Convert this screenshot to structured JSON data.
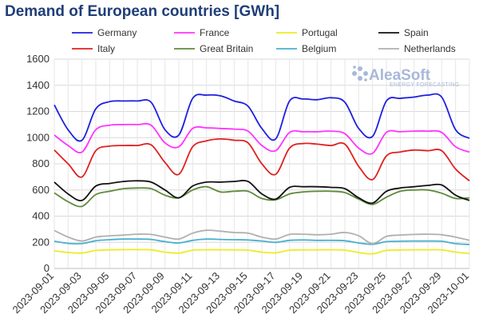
{
  "chart_data": {
    "type": "line",
    "title": "Demand of European countries [GWh]",
    "xlabel": "",
    "ylabel": "",
    "ylim": [
      0,
      1600
    ],
    "yticks": [
      0,
      200,
      400,
      600,
      800,
      1000,
      1200,
      1400,
      1600
    ],
    "xticks": [
      "2023-09-01",
      "2023-09-03",
      "2023-09-05",
      "2023-09-07",
      "2023-09-09",
      "2023-09-11",
      "2023-09-13",
      "2023-09-15",
      "2023-09-17",
      "2023-09-19",
      "2023-09-21",
      "2023-09-23",
      "2023-09-25",
      "2023-09-27",
      "2023-09-29",
      "2023-10-01"
    ],
    "x": [
      "2023-09-01",
      "2023-09-02",
      "2023-09-03",
      "2023-09-04",
      "2023-09-05",
      "2023-09-06",
      "2023-09-07",
      "2023-09-08",
      "2023-09-09",
      "2023-09-10",
      "2023-09-11",
      "2023-09-12",
      "2023-09-13",
      "2023-09-14",
      "2023-09-15",
      "2023-09-16",
      "2023-09-17",
      "2023-09-18",
      "2023-09-19",
      "2023-09-20",
      "2023-09-21",
      "2023-09-22",
      "2023-09-23",
      "2023-09-24",
      "2023-09-25",
      "2023-09-26",
      "2023-09-27",
      "2023-09-28",
      "2023-09-29",
      "2023-09-30",
      "2023-10-01"
    ],
    "grid": true,
    "legend_position": "top",
    "series": [
      {
        "name": "Germany",
        "color": "#1f1fe0",
        "values": [
          1250,
          1060,
          980,
          1220,
          1275,
          1280,
          1280,
          1270,
          1060,
          1020,
          1300,
          1325,
          1320,
          1280,
          1240,
          1070,
          990,
          1280,
          1295,
          1290,
          1305,
          1270,
          1070,
          1010,
          1280,
          1300,
          1310,
          1325,
          1310,
          1060,
          995
        ]
      },
      {
        "name": "France",
        "color": "#ff33ff",
        "values": [
          1020,
          940,
          890,
          1060,
          1095,
          1100,
          1100,
          1095,
          960,
          930,
          1070,
          1075,
          1070,
          1065,
          1050,
          940,
          900,
          1040,
          1045,
          1045,
          1050,
          1030,
          920,
          880,
          1040,
          1045,
          1050,
          1050,
          1040,
          930,
          890
        ]
      },
      {
        "name": "Portugal",
        "color": "#ecec22",
        "values": [
          135,
          122,
          118,
          138,
          142,
          144,
          144,
          142,
          125,
          118,
          140,
          143,
          143,
          142,
          140,
          125,
          120,
          140,
          142,
          142,
          143,
          140,
          122,
          112,
          138,
          141,
          143,
          143,
          142,
          125,
          115
        ]
      },
      {
        "name": "Spain",
        "color": "#111111",
        "values": [
          660,
          570,
          520,
          630,
          650,
          665,
          670,
          660,
          600,
          540,
          630,
          660,
          660,
          665,
          665,
          570,
          530,
          620,
          625,
          625,
          620,
          610,
          540,
          500,
          590,
          615,
          625,
          635,
          638,
          560,
          520
        ]
      },
      {
        "name": "Italy",
        "color": "#e02020",
        "values": [
          905,
          800,
          700,
          900,
          935,
          940,
          940,
          945,
          810,
          720,
          930,
          975,
          990,
          980,
          960,
          800,
          720,
          920,
          955,
          950,
          940,
          950,
          780,
          680,
          860,
          890,
          905,
          900,
          900,
          760,
          670
        ]
      },
      {
        "name": "Great Britain",
        "color": "#5e8a3a",
        "values": [
          578,
          510,
          475,
          565,
          590,
          610,
          615,
          610,
          560,
          540,
          600,
          625,
          585,
          590,
          590,
          535,
          525,
          570,
          585,
          590,
          590,
          580,
          530,
          490,
          545,
          590,
          600,
          600,
          575,
          535,
          540
        ]
      },
      {
        "name": "Belgium",
        "color": "#4ab0cf",
        "values": [
          208,
          192,
          190,
          212,
          220,
          225,
          225,
          222,
          205,
          195,
          215,
          225,
          222,
          220,
          218,
          210,
          200,
          215,
          218,
          215,
          215,
          212,
          195,
          185,
          205,
          208,
          210,
          210,
          208,
          190,
          183
        ]
      },
      {
        "name": "Netherlands",
        "color": "#b0b0b0",
        "values": [
          290,
          240,
          210,
          240,
          250,
          255,
          262,
          260,
          240,
          225,
          270,
          292,
          285,
          275,
          270,
          240,
          225,
          260,
          262,
          258,
          262,
          275,
          250,
          190,
          245,
          255,
          260,
          262,
          258,
          240,
          215
        ]
      }
    ]
  },
  "branding": {
    "name": "AleaSoft",
    "tagline": "ENERGY FORECASTING"
  }
}
